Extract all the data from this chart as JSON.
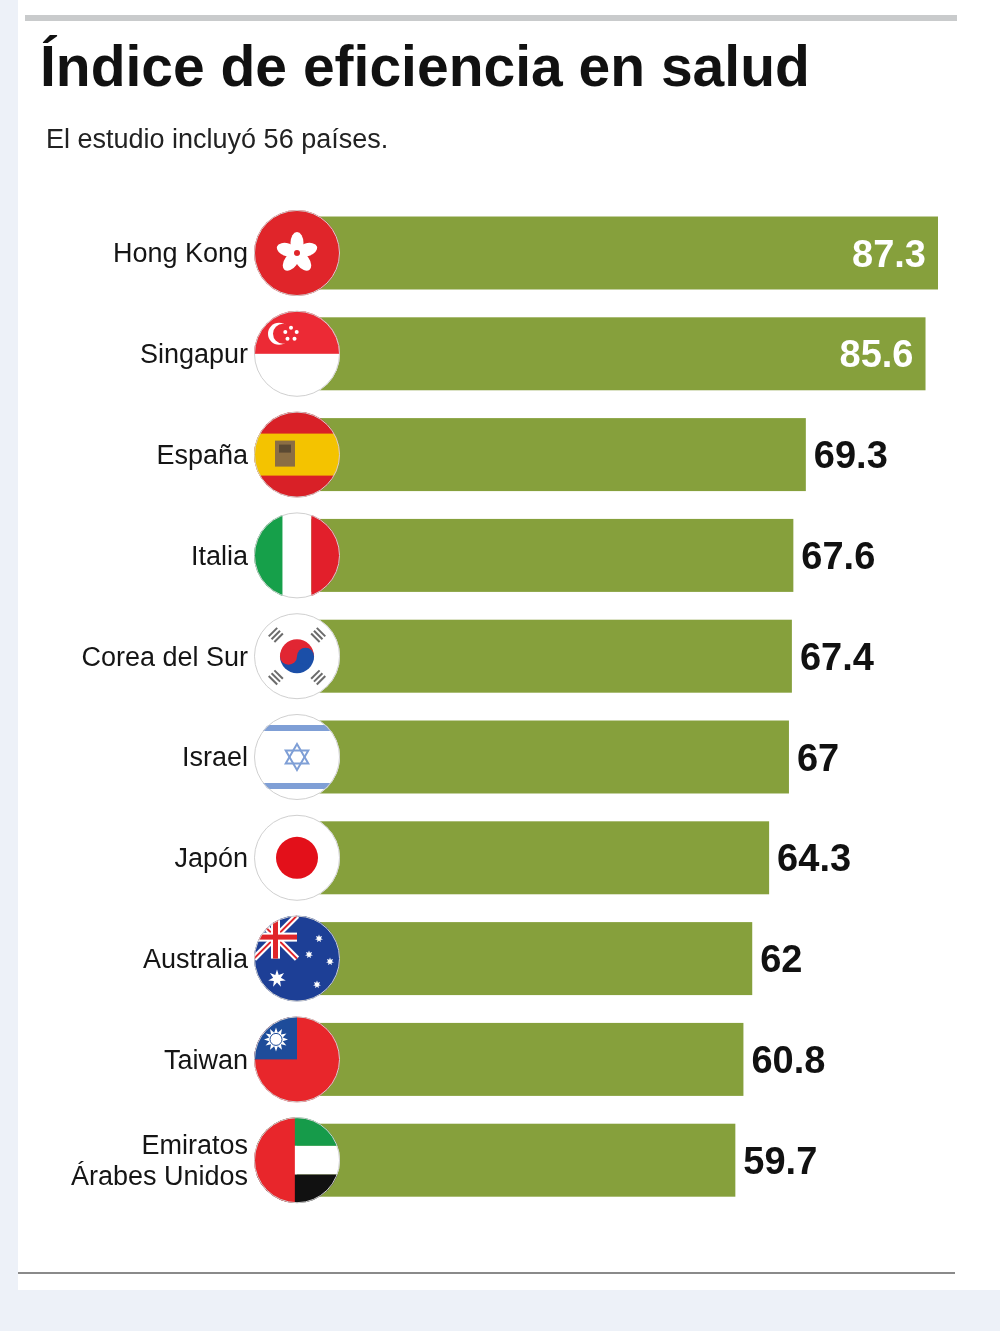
{
  "chart_data": {
    "type": "bar",
    "orientation": "horizontal",
    "title": "Índice de eficiencia en salud",
    "subtitle": "El estudio incluyó 56 países.",
    "categories": [
      "Hong Kong",
      "Singapur",
      "España",
      "Italia",
      "Corea del Sur",
      "Israel",
      "Japón",
      "Australia",
      "Taiwan",
      "Emiratos Árabes Unidos"
    ],
    "values": [
      87.3,
      85.6,
      69.3,
      67.6,
      67.4,
      67,
      64.3,
      62,
      60.8,
      59.7
    ],
    "color": "#86a03c",
    "data_labels": true
  }
}
